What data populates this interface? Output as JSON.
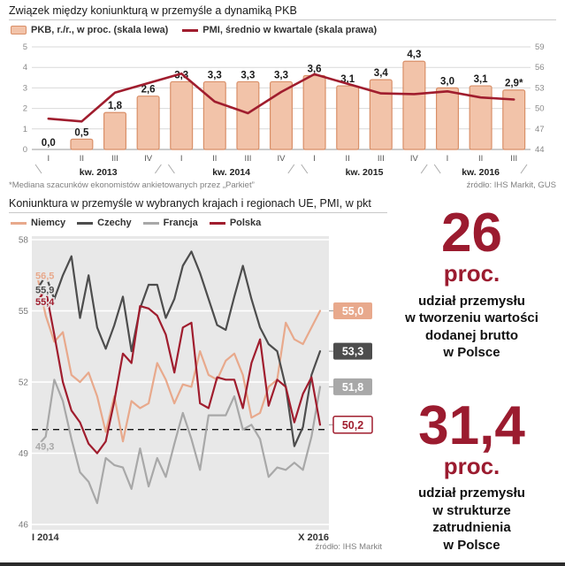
{
  "chart_data": [
    {
      "type": "bar",
      "title": "Związek między koniunkturą w przemyśle a dynamiką PKB",
      "categories": [
        "I",
        "II",
        "III",
        "IV",
        "I",
        "II",
        "III",
        "IV",
        "I",
        "II",
        "III",
        "IV",
        "I",
        "II",
        "III"
      ],
      "groups": [
        {
          "label": "kw. 2013",
          "span": 4
        },
        {
          "label": "kw. 2014",
          "span": 4
        },
        {
          "label": "kw. 2015",
          "span": 4
        },
        {
          "label": "kw. 2016",
          "span": 3
        }
      ],
      "bar_series": {
        "name": "PKB, r./r., w proc. (skala lewa)",
        "values": [
          0.0,
          0.5,
          1.8,
          2.6,
          3.3,
          3.3,
          3.3,
          3.3,
          3.6,
          3.1,
          3.4,
          4.3,
          3.0,
          3.1,
          2.9
        ],
        "labels": [
          "0,0",
          "0,5",
          "1,8",
          "2,6",
          "3,3",
          "3,3",
          "3,3",
          "3,3",
          "3,6",
          "3,1",
          "3,4",
          "4,3",
          "3,0",
          "3,1",
          "2,9*"
        ]
      },
      "line_series": {
        "name": "PMI, średnio w kwartale (skala prawa)",
        "values": [
          48.5,
          48.1,
          52.3,
          53.7,
          55.1,
          51.0,
          49.3,
          52.4,
          55.0,
          53.6,
          52.2,
          52.1,
          52.5,
          51.6,
          51.3
        ]
      },
      "left_axis": {
        "min": 0,
        "max": 5,
        "ticks": [
          0,
          1,
          2,
          3,
          4,
          5
        ]
      },
      "right_axis": {
        "min": 44,
        "max": 59,
        "ticks": [
          44,
          47,
          50,
          53,
          56,
          59
        ]
      },
      "bar_color": "#f2c3a9",
      "bar_border": "#d98f68",
      "line_color": "#a01d2e",
      "footnote": "*Mediana szacunków ekonomistów ankietowanych przez „Parkiet”",
      "source": "źródło: IHS Markit, GUS"
    },
    {
      "type": "line",
      "title": "Koniunktura w przemyśle w wybranych krajach i regionach UE, PMI, w pkt",
      "x_start_label": "I 2014",
      "x_end_label": "X 2016",
      "y_axis": {
        "min": 46,
        "max": 58,
        "ticks": [
          58,
          55,
          52,
          49,
          46
        ]
      },
      "baseline": 50,
      "series": [
        {
          "name": "Niemcy",
          "color": "#e8a98c",
          "start_label": "56,5",
          "end_label": "55,0",
          "box_style": "fill",
          "values": [
            56.5,
            54.8,
            53.7,
            54.1,
            52.3,
            52.0,
            52.4,
            51.4,
            49.9,
            51.4,
            49.5,
            51.2,
            50.9,
            51.1,
            52.8,
            52.1,
            51.1,
            51.9,
            51.8,
            53.3,
            52.3,
            52.1,
            52.9,
            53.2,
            52.3,
            50.5,
            50.7,
            51.8,
            52.1,
            54.5,
            53.8,
            53.6,
            54.3,
            55.0
          ]
        },
        {
          "name": "Czechy",
          "color": "#4d4d4d",
          "start_label": "55,9",
          "end_label": "53,3",
          "box_style": "fill",
          "values": [
            55.9,
            56.5,
            55.5,
            56.5,
            57.3,
            54.7,
            56.5,
            54.3,
            53.4,
            54.4,
            55.6,
            53.3,
            55.1,
            56.1,
            56.1,
            54.7,
            55.5,
            56.9,
            57.5,
            56.6,
            55.5,
            54.4,
            54.2,
            55.6,
            56.9,
            55.5,
            54.3,
            53.6,
            53.3,
            51.8,
            49.3,
            50.1,
            52.3,
            53.3
          ]
        },
        {
          "name": "Francja",
          "color": "#a8a8a8",
          "start_label": "49,3",
          "end_label": "51,8",
          "box_style": "fill",
          "values": [
            49.3,
            49.7,
            52.1,
            51.2,
            49.6,
            48.2,
            47.8,
            46.9,
            48.8,
            48.5,
            48.4,
            47.5,
            49.2,
            47.6,
            48.8,
            48.0,
            49.4,
            50.7,
            49.6,
            48.3,
            50.6,
            50.6,
            50.6,
            51.4,
            50.0,
            50.2,
            49.6,
            48.0,
            48.4,
            48.3,
            48.6,
            48.3,
            49.7,
            51.8
          ]
        },
        {
          "name": "Polska",
          "color": "#a01d2e",
          "start_label": "55,4",
          "end_label": "50,2",
          "box_style": "outline",
          "values": [
            55.4,
            55.9,
            54.0,
            52.0,
            50.8,
            50.3,
            49.4,
            49.0,
            49.5,
            51.2,
            53.2,
            52.8,
            55.2,
            55.1,
            54.8,
            54.0,
            52.4,
            54.3,
            54.5,
            51.1,
            50.9,
            52.2,
            52.1,
            52.1,
            50.9,
            52.8,
            53.8,
            51.0,
            52.1,
            51.8,
            50.3,
            51.5,
            52.2,
            50.2
          ]
        }
      ],
      "source": "źródło: IHS Markit"
    }
  ],
  "stats": [
    {
      "value": "26",
      "unit": "proc.",
      "desc": "udział przemysłu\nw tworzeniu wartości\ndodanej brutto\nw Polsce"
    },
    {
      "value": "31,4",
      "unit": "proc.",
      "desc": "udział przemysłu\nw strukturze\nzatrudnienia\nw Polsce"
    }
  ]
}
